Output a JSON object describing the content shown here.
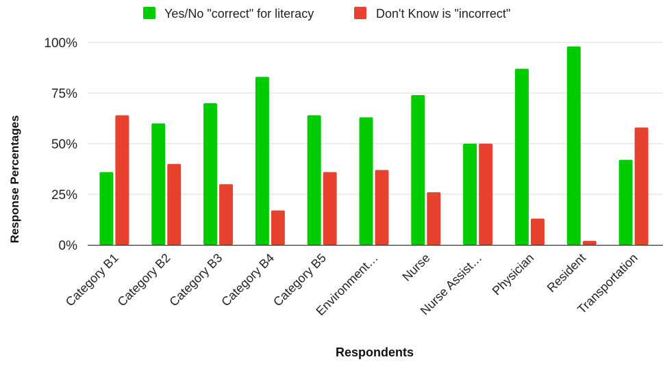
{
  "chart_data": {
    "type": "bar",
    "title": "",
    "xlabel": "Respondents",
    "ylabel": "Response Percentages",
    "ylim": [
      0,
      100
    ],
    "yticks": [
      0,
      25,
      50,
      75,
      100
    ],
    "ytick_labels": [
      "0%",
      "25%",
      "50%",
      "75%",
      "100%"
    ],
    "grid": true,
    "legend_position": "top",
    "categories": [
      "Category B1",
      "Category B2",
      "Category B3",
      "Category B4",
      "Category B5",
      "Environment…",
      "Nurse",
      "Nurse Assist…",
      "Physician",
      "Resident",
      "Transportation"
    ],
    "series": [
      {
        "name": "Yes/No \"correct\" for literacy",
        "color": "#00cc00",
        "values": [
          36,
          60,
          70,
          83,
          64,
          63,
          74,
          50,
          87,
          98,
          42
        ]
      },
      {
        "name": "Don't Know is \"incorrect\"",
        "color": "#e8412e",
        "values": [
          64,
          40,
          30,
          17,
          36,
          37,
          26,
          50,
          13,
          2,
          58
        ]
      }
    ]
  }
}
